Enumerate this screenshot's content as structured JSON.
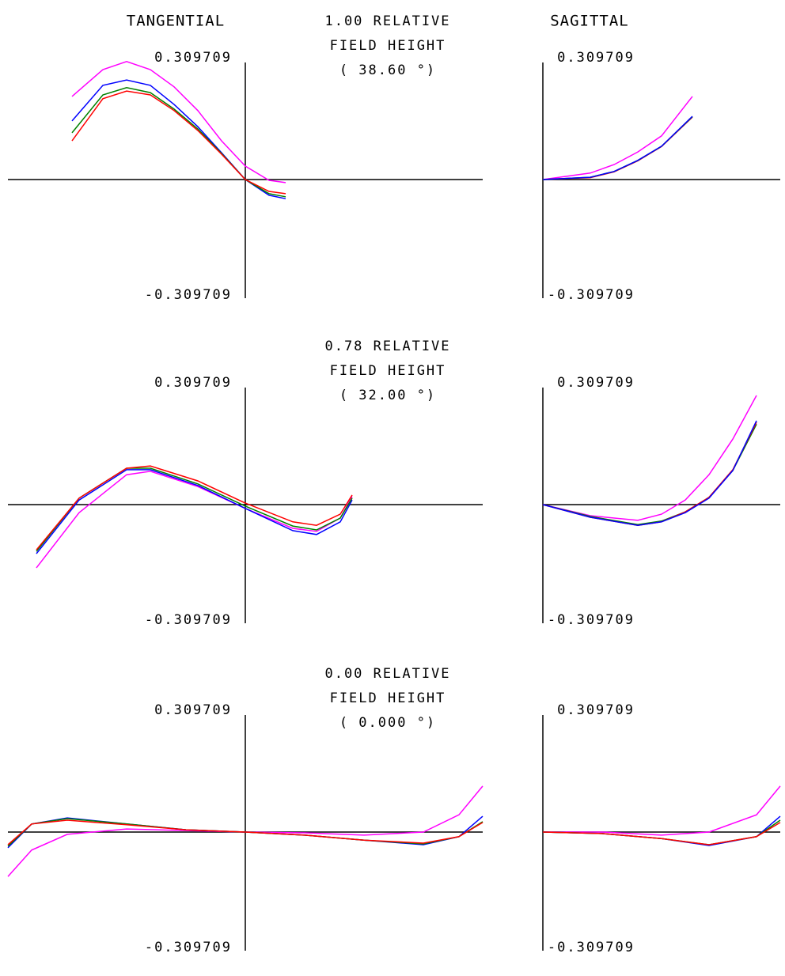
{
  "chart_data": [
    {
      "type": "line",
      "title": "TANGENTIAL",
      "annotations": [
        "1.00  RELATIVE",
        "FIELD HEIGHT",
        "( 38.60 °)"
      ],
      "x": [
        -0.73,
        -0.6,
        -0.5,
        -0.4,
        -0.3,
        -0.2,
        -0.1,
        0,
        0.1,
        0.17
      ],
      "series": [
        {
          "color": "#ff00ff",
          "values": [
            0.217,
            0.287,
            0.308,
            0.287,
            0.242,
            0.18,
            0.101,
            0.035,
            -0.002,
            -0.008
          ]
        },
        {
          "color": "#0000ff",
          "values": [
            0.153,
            0.246,
            0.26,
            0.246,
            0.196,
            0.138,
            0.07,
            0,
            -0.041,
            -0.05
          ]
        },
        {
          "color": "#008000",
          "values": [
            0.122,
            0.221,
            0.24,
            0.227,
            0.184,
            0.132,
            0.068,
            0,
            -0.037,
            -0.045
          ]
        },
        {
          "color": "#ff0000",
          "values": [
            0.101,
            0.211,
            0.231,
            0.221,
            0.18,
            0.128,
            0.066,
            0,
            -0.031,
            -0.037
          ]
        }
      ],
      "xlim": [
        -1,
        1
      ],
      "ylim": [
        -0.309709,
        0.309709
      ],
      "yticks": [
        -0.309709,
        0.309709
      ]
    },
    {
      "type": "line",
      "title": "SAGITTAL",
      "x": [
        0,
        0.2,
        0.3,
        0.4,
        0.5,
        0.63
      ],
      "series": [
        {
          "color": "#ff00ff",
          "values": [
            0,
            0.017,
            0.039,
            0.072,
            0.114,
            0.217
          ]
        },
        {
          "color": "#ff0000",
          "values": [
            0,
            0.005,
            0.02,
            0.049,
            0.086,
            0.163
          ]
        },
        {
          "color": "#008000",
          "values": [
            0,
            0.006,
            0.021,
            0.05,
            0.087,
            0.164
          ]
        },
        {
          "color": "#0000ff",
          "values": [
            0,
            0.006,
            0.021,
            0.05,
            0.087,
            0.165
          ]
        }
      ],
      "xlim": [
        0,
        1
      ],
      "ylim": [
        -0.309709,
        0.309709
      ],
      "yticks": [
        -0.309709,
        0.309709
      ]
    },
    {
      "type": "line",
      "annotations": [
        "0.78  RELATIVE",
        "FIELD HEIGHT",
        "( 32.00 °)"
      ],
      "x": [
        -0.88,
        -0.7,
        -0.5,
        -0.4,
        -0.2,
        0,
        0.2,
        0.3,
        0.4,
        0.45
      ],
      "series": [
        {
          "color": "#ff00ff",
          "values": [
            -0.165,
            -0.021,
            0.078,
            0.087,
            0.047,
            -0.01,
            -0.062,
            -0.07,
            -0.035,
            0.021
          ]
        },
        {
          "color": "#0000ff",
          "values": [
            -0.128,
            0.012,
            0.091,
            0.091,
            0.05,
            -0.01,
            -0.068,
            -0.078,
            -0.045,
            0.012
          ]
        },
        {
          "color": "#008000",
          "values": [
            -0.122,
            0.017,
            0.095,
            0.095,
            0.054,
            -0.004,
            -0.056,
            -0.066,
            -0.035,
            0.017
          ]
        },
        {
          "color": "#ff0000",
          "values": [
            -0.118,
            0.017,
            0.095,
            0.101,
            0.062,
            0.004,
            -0.045,
            -0.054,
            -0.025,
            0.025
          ]
        }
      ],
      "xlim": [
        -1,
        1
      ],
      "ylim": [
        -0.309709,
        0.309709
      ],
      "yticks": [
        -0.309709,
        0.309709
      ]
    },
    {
      "type": "line",
      "x": [
        0,
        0.2,
        0.4,
        0.5,
        0.6,
        0.7,
        0.8,
        0.9
      ],
      "series": [
        {
          "color": "#ff00ff",
          "values": [
            0,
            -0.029,
            -0.041,
            -0.025,
            0.012,
            0.078,
            0.171,
            0.285
          ]
        },
        {
          "color": "#008000",
          "values": [
            0,
            -0.031,
            -0.052,
            -0.043,
            -0.019,
            0.019,
            0.089,
            0.21
          ]
        },
        {
          "color": "#ff0000",
          "values": [
            0,
            -0.033,
            -0.054,
            -0.045,
            -0.019,
            0.019,
            0.091,
            0.215
          ]
        },
        {
          "color": "#0000ff",
          "values": [
            0,
            -0.033,
            -0.054,
            -0.045,
            -0.021,
            0.017,
            0.089,
            0.219
          ]
        }
      ],
      "xlim": [
        0,
        1
      ],
      "ylim": [
        -0.309709,
        0.309709
      ],
      "yticks": [
        -0.309709,
        0.309709
      ]
    },
    {
      "type": "line",
      "annotations": [
        "0.00  RELATIVE",
        "FIELD HEIGHT",
        "( 0.000 °)"
      ],
      "x": [
        -1,
        -0.9,
        -0.75,
        -0.5,
        -0.25,
        0,
        0.25,
        0.5,
        0.75,
        0.9,
        1
      ],
      "series": [
        {
          "color": "#ff00ff",
          "values": [
            -0.116,
            -0.047,
            -0.006,
            0.008,
            0.004,
            0,
            -0.002,
            -0.008,
            0,
            0.045,
            0.12
          ]
        },
        {
          "color": "#0000ff",
          "values": [
            -0.041,
            0.021,
            0.037,
            0.021,
            0.006,
            0,
            -0.008,
            -0.021,
            -0.033,
            -0.012,
            0.041
          ]
        },
        {
          "color": "#008000",
          "values": [
            -0.037,
            0.021,
            0.035,
            0.021,
            0.006,
            0,
            -0.008,
            -0.021,
            -0.031,
            -0.012,
            0.027
          ]
        },
        {
          "color": "#ff0000",
          "values": [
            -0.033,
            0.021,
            0.031,
            0.019,
            0.006,
            0,
            -0.008,
            -0.021,
            -0.029,
            -0.012,
            0.025
          ]
        }
      ],
      "xlim": [
        -1,
        1
      ],
      "ylim": [
        -0.309709,
        0.309709
      ],
      "yticks": [
        -0.309709,
        0.309709
      ]
    },
    {
      "type": "line",
      "x": [
        0,
        0.25,
        0.5,
        0.7,
        0.9,
        1
      ],
      "series": [
        {
          "color": "#ff00ff",
          "values": [
            0,
            0,
            -0.008,
            0,
            0.045,
            0.12
          ]
        },
        {
          "color": "#0000ff",
          "values": [
            0,
            -0.004,
            -0.017,
            -0.035,
            -0.012,
            0.041
          ]
        },
        {
          "color": "#008000",
          "values": [
            0,
            -0.004,
            -0.017,
            -0.033,
            -0.012,
            0.031
          ]
        },
        {
          "color": "#ff0000",
          "values": [
            0,
            -0.004,
            -0.017,
            -0.033,
            -0.012,
            0.025
          ]
        }
      ],
      "xlim": [
        0,
        1
      ],
      "ylim": [
        -0.309709,
        0.309709
      ],
      "yticks": [
        -0.309709,
        0.309709
      ]
    }
  ]
}
